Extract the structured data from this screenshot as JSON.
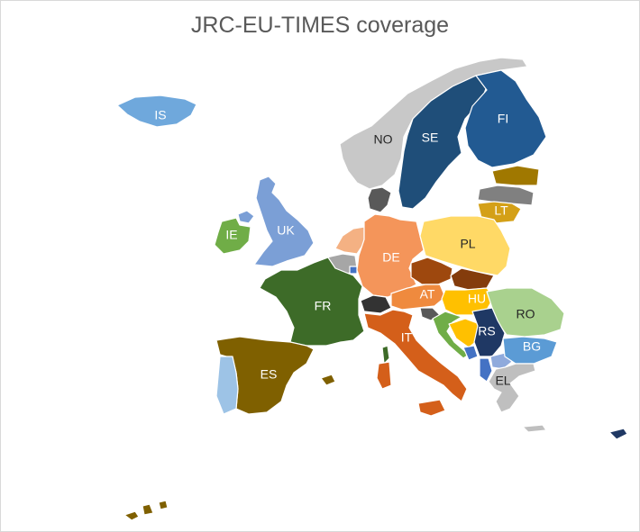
{
  "title": "JRC-EU-TIMES coverage",
  "colors": {
    "background": "#ffffff",
    "border": "#d9d9d9",
    "title_text": "#595959",
    "non_modelled": "#c8c8c8"
  },
  "countries": [
    {
      "code": "IS",
      "label": "IS",
      "color": "#6fa8dc",
      "label_color": "#ffffff"
    },
    {
      "code": "NO",
      "label": "NO",
      "color": "#c8c8c8",
      "label_color": "#262626"
    },
    {
      "code": "SE",
      "label": "SE",
      "color": "#1f4e79",
      "label_color": "#ffffff"
    },
    {
      "code": "FI",
      "label": "FI",
      "color": "#225a92",
      "label_color": "#ffffff"
    },
    {
      "code": "UK",
      "label": "UK",
      "color": "#7b9fd6",
      "label_color": "#ffffff"
    },
    {
      "code": "IE",
      "label": "IE",
      "color": "#70ad47",
      "label_color": "#ffffff"
    },
    {
      "code": "DE",
      "label": "DE",
      "color": "#f4955a",
      "label_color": "#ffffff"
    },
    {
      "code": "PL",
      "label": "PL",
      "color": "#ffd966",
      "label_color": "#262626"
    },
    {
      "code": "FR",
      "label": "FR",
      "color": "#3d6b28",
      "label_color": "#ffffff"
    },
    {
      "code": "AT",
      "label": "AT",
      "color": "#ef8a3e",
      "label_color": "#ffffff"
    },
    {
      "code": "HU",
      "label": "HU",
      "color": "#ffc000",
      "label_color": "#ffffff"
    },
    {
      "code": "RO",
      "label": "RO",
      "color": "#a9d18e",
      "label_color": "#262626"
    },
    {
      "code": "IT",
      "label": "IT",
      "color": "#d45f1a",
      "label_color": "#ffffff"
    },
    {
      "code": "RS",
      "label": "RS",
      "color": "#1f3864",
      "label_color": "#ffffff"
    },
    {
      "code": "BG",
      "label": "BG",
      "color": "#5b9bd5",
      "label_color": "#ffffff"
    },
    {
      "code": "ES",
      "label": "ES",
      "color": "#7f6000",
      "label_color": "#ffffff"
    },
    {
      "code": "EL",
      "label": "EL",
      "color": "#bfbfbf",
      "label_color": "#262626"
    },
    {
      "code": "LT",
      "label": "LT",
      "color": "#d4a017",
      "label_color": "#ffffff"
    }
  ],
  "unlabelled_regions": [
    {
      "name": "portugal",
      "color": "#9dc3e6"
    },
    {
      "name": "latvia",
      "color": "#808080"
    },
    {
      "name": "estonia",
      "color": "#a07800"
    },
    {
      "name": "denmark",
      "color": "#595959"
    },
    {
      "name": "netherlands",
      "color": "#f4b183"
    },
    {
      "name": "belgium",
      "color": "#a6a6a6"
    },
    {
      "name": "luxembourg",
      "color": "#4472c4"
    },
    {
      "name": "czechia",
      "color": "#9e480e"
    },
    {
      "name": "slovakia",
      "color": "#843c0c"
    },
    {
      "name": "switzerland",
      "color": "#333333"
    },
    {
      "name": "slovenia",
      "color": "#595959"
    },
    {
      "name": "croatia",
      "color": "#70ad47"
    },
    {
      "name": "bosnia",
      "color": "#ffc000"
    },
    {
      "name": "montenegro",
      "color": "#4472c4"
    },
    {
      "name": "albania",
      "color": "#4472c4"
    },
    {
      "name": "north-macedonia",
      "color": "#8faadc"
    },
    {
      "name": "cyprus",
      "color": "#1f3864"
    },
    {
      "name": "corsica",
      "color": "#3d6b28"
    },
    {
      "name": "balearics",
      "color": "#7f6000"
    },
    {
      "name": "canary-islands",
      "color": "#7f6000"
    },
    {
      "name": "ni",
      "color": "#7b9fd6"
    }
  ]
}
